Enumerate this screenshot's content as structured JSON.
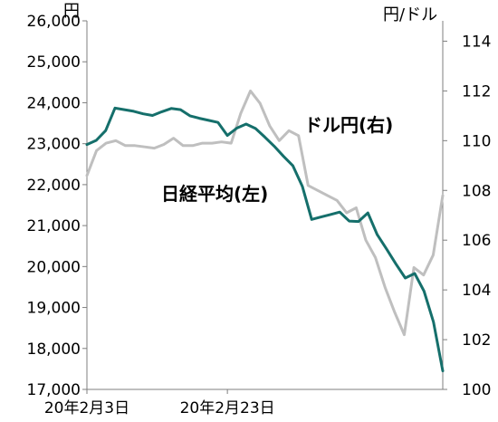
{
  "chart_data": {
    "type": "line",
    "title": "",
    "left_axis": {
      "unit": "円",
      "ylim": [
        17000,
        26000
      ],
      "ticks": [
        17000,
        18000,
        19000,
        20000,
        21000,
        22000,
        23000,
        24000,
        25000,
        26000
      ],
      "tick_labels": [
        "17,000",
        "18,000",
        "19,000",
        "20,000",
        "21,000",
        "22,000",
        "23,000",
        "24,000",
        "25,000",
        "26,000"
      ]
    },
    "right_axis": {
      "unit": "円/ドル",
      "ylim": [
        100,
        115
      ],
      "ticks": [
        100,
        102,
        104,
        106,
        108,
        110,
        112,
        114
      ],
      "tick_labels": [
        "100",
        "102",
        "104",
        "106",
        "108",
        "110",
        "112",
        "114"
      ]
    },
    "x_ticks": [
      {
        "index": 0,
        "label": "20年2月3日"
      },
      {
        "index": 15,
        "label": "20年2月23日"
      }
    ],
    "x_count": 42,
    "grid": false,
    "series": [
      {
        "name": "日経平均(左)",
        "axis": "left",
        "color": "#156f6b",
        "values": [
          22980,
          23080,
          23320,
          23870,
          23830,
          23790,
          23730,
          23690,
          23780,
          23860,
          23830,
          23680,
          23620,
          23570,
          23520,
          23200,
          23380,
          23480,
          23370,
          23160,
          22940,
          22690,
          22460,
          21960,
          21150,
          21210,
          21270,
          21330,
          21110,
          21100,
          21310,
          20780,
          20430,
          20060,
          19720,
          19830,
          19400,
          18650,
          17450
        ]
      },
      {
        "name": "ドル円(右)",
        "axis": "right",
        "color": "#bfbfbf",
        "values": [
          108.6,
          109.6,
          109.9,
          110.0,
          109.8,
          109.8,
          109.75,
          109.7,
          109.85,
          110.1,
          109.8,
          109.8,
          109.9,
          109.9,
          109.95,
          109.9,
          111.1,
          112.0,
          111.5,
          110.6,
          110.0,
          110.4,
          110.2,
          108.2,
          108.0,
          107.8,
          107.6,
          107.1,
          107.3,
          106.0,
          105.3,
          104.1,
          103.1,
          102.2,
          104.9,
          104.6,
          105.4,
          107.8
        ]
      }
    ]
  }
}
